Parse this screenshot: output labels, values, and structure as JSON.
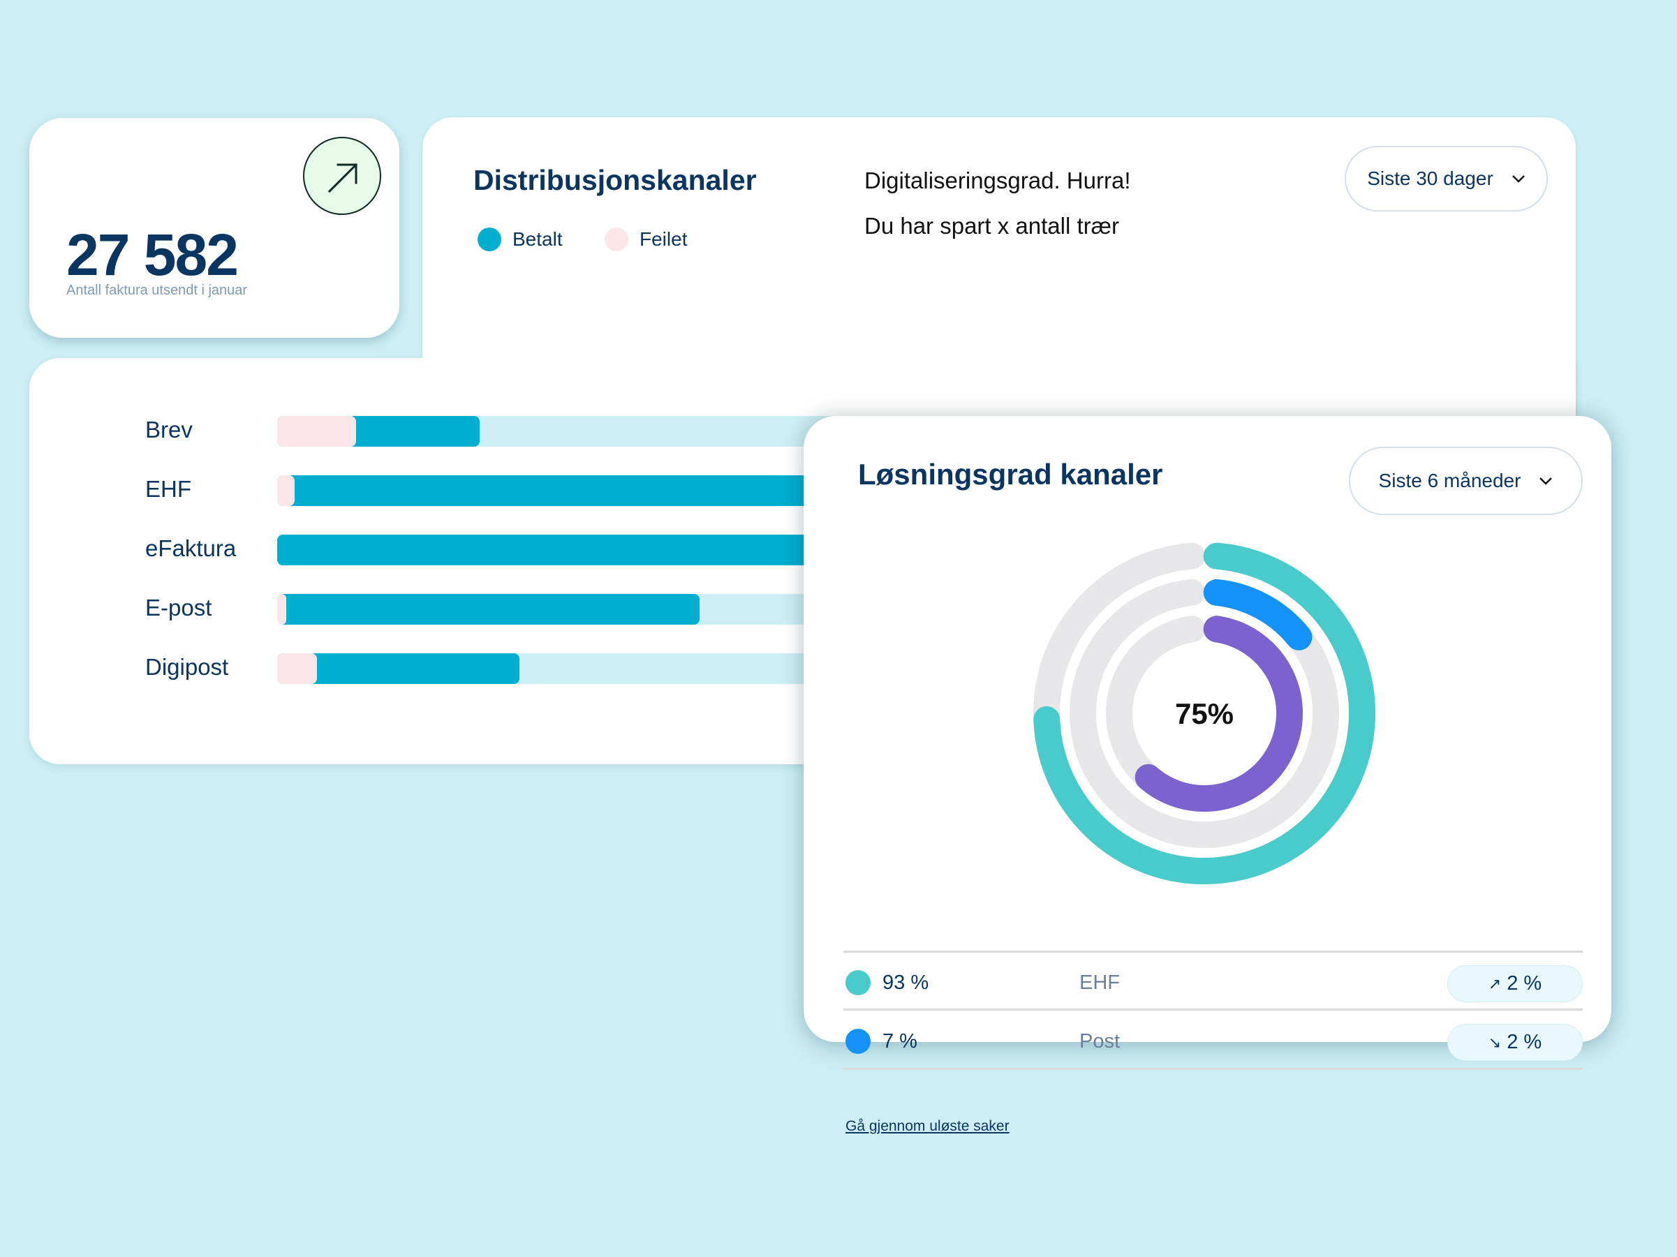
{
  "stat_card": {
    "value": "27 582",
    "caption": "Antall faktura utsendt i januar",
    "icon": "arrow-up-right-icon"
  },
  "distribution": {
    "title": "Distribusjonskanaler",
    "legend": [
      {
        "label": "Betalt",
        "color": "#00AECF"
      },
      {
        "label": "Feilet",
        "color": "#FDE6E7"
      }
    ],
    "info_line_1": "Digitaliseringsgrad. Hurra!",
    "info_line_2": "Du har spart x antall trær",
    "period_dropdown": {
      "selected": "Siste 30 dager",
      "icon": "chevron-down-icon"
    }
  },
  "chart_data": [
    {
      "type": "bar",
      "orientation": "horizontal",
      "stacked": true,
      "title": "Distribusjonskanaler",
      "categories": [
        "Brev",
        "EHF",
        "eFaktura",
        "E-post",
        "Digipost"
      ],
      "series": [
        {
          "name": "Feilet",
          "color": "#FDE6E7",
          "values": [
            9,
            2,
            0,
            1,
            4.5
          ]
        },
        {
          "name": "Betalt",
          "color": "#00AECF",
          "values": [
            14,
            85,
            90,
            47,
            23
          ]
        }
      ],
      "value_unit": "percent of track",
      "track_color": "#CCEEF4"
    },
    {
      "type": "pie",
      "variant": "radial-rings",
      "title": "Løsningsgrad kanaler",
      "center_label": "75%",
      "rings": [
        {
          "name": "outer",
          "value": 75,
          "color": "#4ACBCB"
        },
        {
          "name": "middle",
          "value": 13,
          "color": "#1592FA"
        },
        {
          "name": "inner",
          "value": 62,
          "color": "#7B62CE"
        }
      ],
      "track_color": "#E7E7EA",
      "max": 100
    }
  ],
  "resolution": {
    "title": "Løsningsgrad kanaler",
    "period_dropdown": {
      "selected": "Siste 6 måneder",
      "icon": "chevron-down-icon"
    },
    "rows": [
      {
        "percent": "93 %",
        "channel": "EHF",
        "change": "2 %",
        "trend": "up",
        "trend_icon": "↗",
        "color": "#4ACBCB"
      },
      {
        "percent": "7 %",
        "channel": "Post",
        "change": "2 %",
        "trend": "down",
        "trend_icon": "↘",
        "color": "#1592FA"
      }
    ],
    "link": "Gå gjennom uløste saker"
  }
}
